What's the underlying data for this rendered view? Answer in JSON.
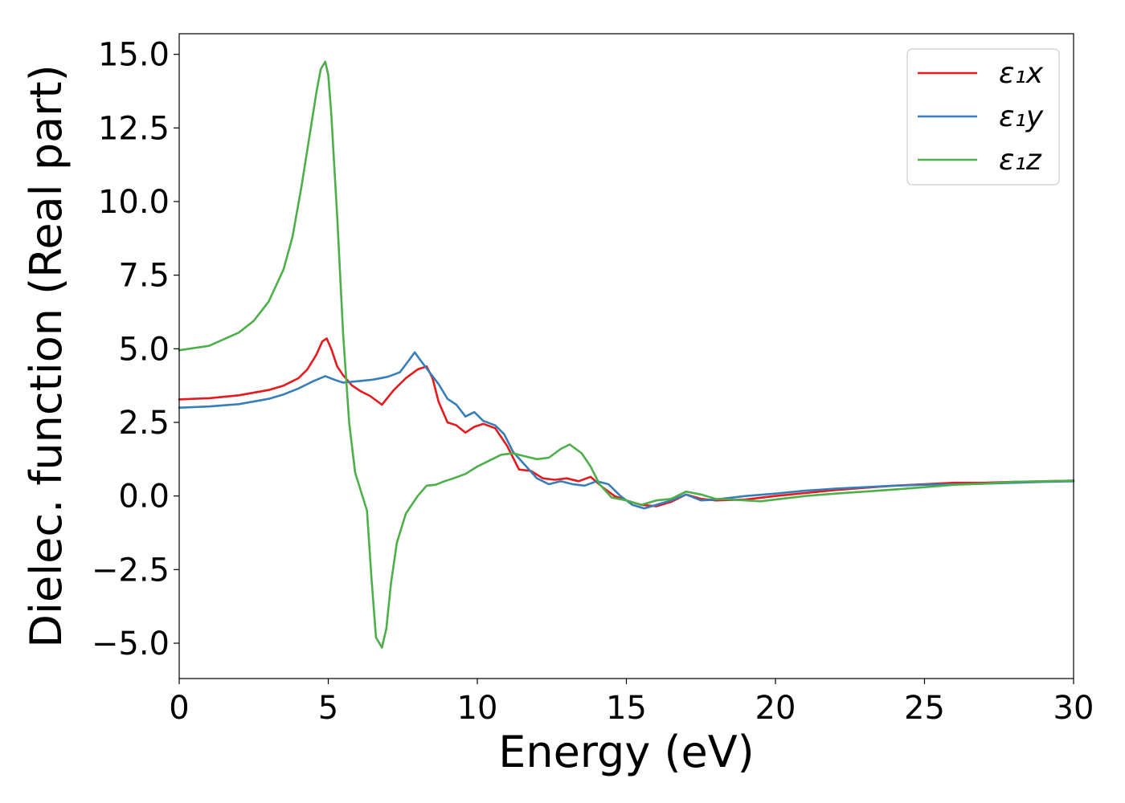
{
  "chart_data": {
    "type": "line",
    "xlabel": "Energy (eV)",
    "ylabel": "Dielec. function (Real part)",
    "xlim": [
      0,
      30
    ],
    "ylim": [
      -6.2,
      15.7
    ],
    "xticks": [
      0,
      5,
      10,
      15,
      20,
      25,
      30
    ],
    "xtick_labels": [
      "0",
      "5",
      "10",
      "15",
      "20",
      "25",
      "30"
    ],
    "yticks": [
      -5.0,
      -2.5,
      0.0,
      2.5,
      5.0,
      7.5,
      10.0,
      12.5,
      15.0
    ],
    "ytick_labels": [
      "−5.0",
      "−2.5",
      "0.0",
      "2.5",
      "5.0",
      "7.5",
      "10.0",
      "12.5",
      "15.0"
    ],
    "grid": false,
    "legend_position": "top-right",
    "series": [
      {
        "name": "ε₁x",
        "color": "#e41a1c",
        "x": [
          0,
          1,
          2,
          3,
          3.5,
          4,
          4.3,
          4.6,
          4.8,
          4.95,
          5.1,
          5.3,
          5.5,
          5.8,
          6.1,
          6.4,
          6.8,
          7.2,
          7.6,
          8.0,
          8.3,
          8.5,
          8.7,
          9.0,
          9.3,
          9.6,
          9.9,
          10.2,
          10.6,
          11.0,
          11.4,
          11.8,
          12.2,
          12.6,
          13.0,
          13.4,
          13.8,
          14.2,
          14.6,
          15.0,
          15.5,
          16.0,
          16.5,
          17.0,
          17.5,
          18.0,
          19.0,
          20.0,
          21.0,
          22.0,
          23.0,
          24.0,
          25.0,
          26.0,
          27.0,
          28.0,
          29.0,
          30.0
        ],
        "y": [
          3.28,
          3.32,
          3.42,
          3.6,
          3.75,
          4.0,
          4.3,
          4.8,
          5.25,
          5.35,
          5.0,
          4.4,
          4.1,
          3.75,
          3.55,
          3.4,
          3.1,
          3.6,
          4.0,
          4.3,
          4.4,
          4.0,
          3.2,
          2.5,
          2.4,
          2.15,
          2.35,
          2.45,
          2.3,
          1.7,
          0.9,
          0.85,
          0.6,
          0.55,
          0.6,
          0.5,
          0.65,
          0.3,
          0.0,
          -0.15,
          -0.3,
          -0.35,
          -0.2,
          0.05,
          -0.1,
          -0.15,
          -0.12,
          0.0,
          0.1,
          0.2,
          0.28,
          0.35,
          0.4,
          0.45,
          0.45,
          0.48,
          0.5,
          0.52
        ]
      },
      {
        "name": "ε₁y",
        "color": "#377eb8",
        "x": [
          0,
          1,
          2,
          3,
          3.5,
          4,
          4.5,
          4.9,
          5.2,
          5.5,
          6.0,
          6.5,
          7.0,
          7.4,
          7.7,
          7.9,
          8.1,
          8.4,
          8.7,
          9.0,
          9.3,
          9.6,
          9.9,
          10.2,
          10.6,
          10.9,
          11.2,
          11.6,
          12.0,
          12.4,
          12.8,
          13.2,
          13.6,
          14.0,
          14.4,
          14.8,
          15.2,
          15.6,
          16.0,
          16.5,
          17.0,
          17.5,
          18.0,
          19.0,
          20.0,
          21.0,
          22.0,
          23.0,
          24.0,
          25.0,
          26.0,
          27.0,
          28.0,
          29.0,
          30.0
        ],
        "y": [
          3.0,
          3.04,
          3.12,
          3.3,
          3.45,
          3.65,
          3.9,
          4.07,
          3.95,
          3.85,
          3.9,
          3.95,
          4.05,
          4.2,
          4.6,
          4.88,
          4.6,
          4.2,
          3.8,
          3.3,
          3.1,
          2.7,
          2.85,
          2.55,
          2.4,
          2.1,
          1.5,
          1.05,
          0.6,
          0.4,
          0.5,
          0.4,
          0.35,
          0.5,
          0.4,
          0.0,
          -0.3,
          -0.42,
          -0.3,
          -0.15,
          0.05,
          -0.15,
          -0.12,
          0.0,
          0.08,
          0.18,
          0.25,
          0.3,
          0.35,
          0.38,
          0.4,
          0.42,
          0.45,
          0.48,
          0.5
        ]
      },
      {
        "name": "ε₁z",
        "color": "#4daf4a",
        "x": [
          0,
          1,
          2,
          2.5,
          3,
          3.5,
          3.8,
          4.1,
          4.4,
          4.6,
          4.75,
          4.9,
          5.0,
          5.1,
          5.3,
          5.5,
          5.7,
          5.9,
          6.1,
          6.3,
          6.45,
          6.6,
          6.8,
          6.95,
          7.1,
          7.3,
          7.6,
          8.0,
          8.3,
          8.6,
          8.9,
          9.2,
          9.6,
          10.0,
          10.4,
          10.8,
          11.2,
          11.6,
          12.0,
          12.4,
          12.8,
          13.1,
          13.5,
          13.8,
          14.1,
          14.5,
          15.0,
          15.5,
          16.0,
          16.5,
          17.0,
          17.5,
          18.0,
          18.5,
          19.0,
          19.5,
          20.0,
          21.0,
          22.0,
          23.0,
          24.0,
          25.0,
          26.0,
          27.0,
          28.0,
          29.0,
          30.0
        ],
        "y": [
          4.95,
          5.1,
          5.55,
          5.95,
          6.6,
          7.7,
          8.8,
          10.5,
          12.4,
          13.7,
          14.5,
          14.75,
          14.3,
          13.0,
          9.5,
          5.5,
          2.5,
          0.8,
          0.15,
          -0.5,
          -2.8,
          -4.8,
          -5.15,
          -4.5,
          -3.0,
          -1.6,
          -0.6,
          0.0,
          0.35,
          0.38,
          0.5,
          0.6,
          0.75,
          1.0,
          1.2,
          1.4,
          1.45,
          1.35,
          1.25,
          1.3,
          1.6,
          1.75,
          1.45,
          1.0,
          0.4,
          -0.05,
          -0.15,
          -0.3,
          -0.15,
          -0.1,
          0.15,
          0.05,
          -0.1,
          -0.12,
          -0.15,
          -0.18,
          -0.12,
          0.0,
          0.08,
          0.15,
          0.22,
          0.3,
          0.38,
          0.42,
          0.48,
          0.5,
          0.52
        ]
      }
    ]
  }
}
